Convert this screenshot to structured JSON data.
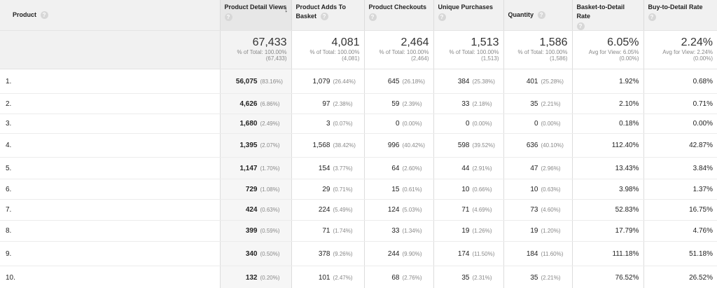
{
  "headers": {
    "product": "Product",
    "pdv": "Product Detail Views",
    "adds": "Product Adds To Basket",
    "checkouts": "Product Checkouts",
    "unique": "Unique Purchases",
    "quantity": "Quantity",
    "b2d": "Basket-to-Detail Rate",
    "buy": "Buy-to-Detail Rate",
    "help_glyph": "?",
    "sort_glyph": "↓"
  },
  "totals": {
    "pdv": {
      "value": "67,433",
      "sub1": "% of Total: 100.00%",
      "sub2": "(67,433)"
    },
    "adds": {
      "value": "4,081",
      "sub1": "% of Total: 100.00%",
      "sub2": "(4,081)"
    },
    "checkouts": {
      "value": "2,464",
      "sub1": "% of Total: 100.00%",
      "sub2": "(2,464)"
    },
    "unique": {
      "value": "1,513",
      "sub1": "% of Total: 100.00%",
      "sub2": "(1,513)"
    },
    "quantity": {
      "value": "1,586",
      "sub1": "% of Total: 100.00%",
      "sub2": "(1,586)"
    },
    "b2d": {
      "value": "6.05%",
      "sub1": "Avg for View: 6.05%",
      "sub2": "(0.00%)"
    },
    "buy": {
      "value": "2.24%",
      "sub1": "Avg for View: 2.24%",
      "sub2": "(0.00%)"
    }
  },
  "rows": [
    {
      "num": "1.",
      "pdv": "56,075",
      "pdv_pct": "(83.16%)",
      "adds": "1,079",
      "adds_pct": "(26.44%)",
      "checkouts": "645",
      "checkouts_pct": "(26.18%)",
      "unique": "384",
      "unique_pct": "(25.38%)",
      "quantity": "401",
      "quantity_pct": "(25.28%)",
      "b2d": "1.92%",
      "buy": "0.68%"
    },
    {
      "num": "2.",
      "pdv": "4,626",
      "pdv_pct": "(6.86%)",
      "adds": "97",
      "adds_pct": "(2.38%)",
      "checkouts": "59",
      "checkouts_pct": "(2.39%)",
      "unique": "33",
      "unique_pct": "(2.18%)",
      "quantity": "35",
      "quantity_pct": "(2.21%)",
      "b2d": "2.10%",
      "buy": "0.71%"
    },
    {
      "num": "3.",
      "pdv": "1,680",
      "pdv_pct": "(2.49%)",
      "adds": "3",
      "adds_pct": "(0.07%)",
      "checkouts": "0",
      "checkouts_pct": "(0.00%)",
      "unique": "0",
      "unique_pct": "(0.00%)",
      "quantity": "0",
      "quantity_pct": "(0.00%)",
      "b2d": "0.18%",
      "buy": "0.00%"
    },
    {
      "num": "4.",
      "pdv": "1,395",
      "pdv_pct": "(2.07%)",
      "adds": "1,568",
      "adds_pct": "(38.42%)",
      "checkouts": "996",
      "checkouts_pct": "(40.42%)",
      "unique": "598",
      "unique_pct": "(39.52%)",
      "quantity": "636",
      "quantity_pct": "(40.10%)",
      "b2d": "112.40%",
      "buy": "42.87%"
    },
    {
      "num": "5.",
      "pdv": "1,147",
      "pdv_pct": "(1.70%)",
      "adds": "154",
      "adds_pct": "(3.77%)",
      "checkouts": "64",
      "checkouts_pct": "(2.60%)",
      "unique": "44",
      "unique_pct": "(2.91%)",
      "quantity": "47",
      "quantity_pct": "(2.96%)",
      "b2d": "13.43%",
      "buy": "3.84%"
    },
    {
      "num": "6.",
      "pdv": "729",
      "pdv_pct": "(1.08%)",
      "adds": "29",
      "adds_pct": "(0.71%)",
      "checkouts": "15",
      "checkouts_pct": "(0.61%)",
      "unique": "10",
      "unique_pct": "(0.66%)",
      "quantity": "10",
      "quantity_pct": "(0.63%)",
      "b2d": "3.98%",
      "buy": "1.37%"
    },
    {
      "num": "7.",
      "pdv": "424",
      "pdv_pct": "(0.63%)",
      "adds": "224",
      "adds_pct": "(5.49%)",
      "checkouts": "124",
      "checkouts_pct": "(5.03%)",
      "unique": "71",
      "unique_pct": "(4.69%)",
      "quantity": "73",
      "quantity_pct": "(4.60%)",
      "b2d": "52.83%",
      "buy": "16.75%"
    },
    {
      "num": "8.",
      "pdv": "399",
      "pdv_pct": "(0.59%)",
      "adds": "71",
      "adds_pct": "(1.74%)",
      "checkouts": "33",
      "checkouts_pct": "(1.34%)",
      "unique": "19",
      "unique_pct": "(1.26%)",
      "quantity": "19",
      "quantity_pct": "(1.20%)",
      "b2d": "17.79%",
      "buy": "4.76%"
    },
    {
      "num": "9.",
      "pdv": "340",
      "pdv_pct": "(0.50%)",
      "adds": "378",
      "adds_pct": "(9.26%)",
      "checkouts": "244",
      "checkouts_pct": "(9.90%)",
      "unique": "174",
      "unique_pct": "(11.50%)",
      "quantity": "184",
      "quantity_pct": "(11.60%)",
      "b2d": "111.18%",
      "buy": "51.18%"
    },
    {
      "num": "10.",
      "pdv": "132",
      "pdv_pct": "(0.20%)",
      "adds": "101",
      "adds_pct": "(2.47%)",
      "checkouts": "68",
      "checkouts_pct": "(2.76%)",
      "unique": "35",
      "unique_pct": "(2.31%)",
      "quantity": "35",
      "quantity_pct": "(2.21%)",
      "b2d": "76.52%",
      "buy": "26.52%"
    }
  ]
}
